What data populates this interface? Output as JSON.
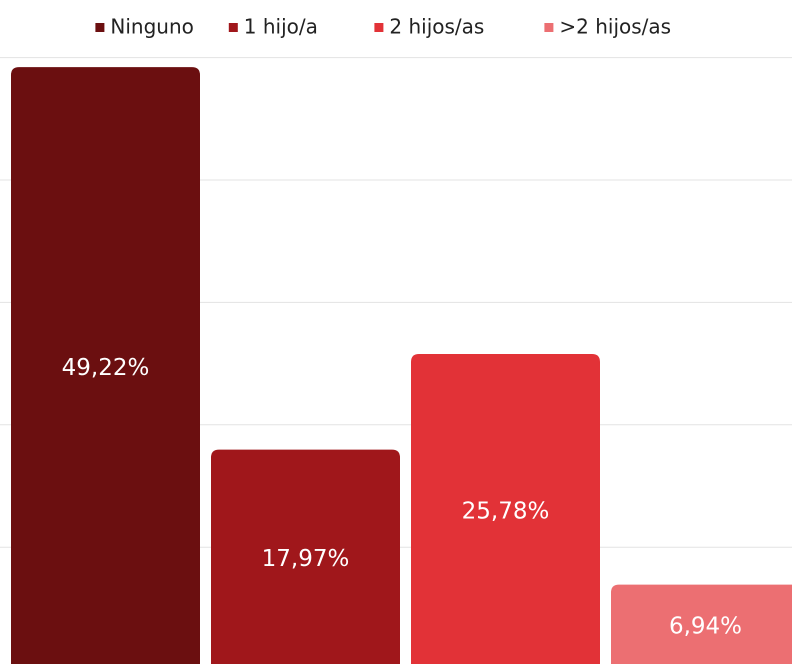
{
  "chart_data": {
    "type": "bar",
    "series": [
      {
        "name": "Ninguno",
        "color": "#6b0f10",
        "values": [
          49.22
        ],
        "value_labels": [
          "49,22%"
        ]
      },
      {
        "name": "1 hijo/a",
        "color": "#a0171b",
        "values": [
          17.97
        ],
        "value_labels": [
          "17,97%"
        ]
      },
      {
        "name": "2 hijos/as",
        "color": "#e23237",
        "values": [
          25.78
        ],
        "value_labels": [
          "25,78%"
        ]
      },
      {
        "name": ">2 hijos/as",
        "color": "#ec6f72",
        "values": [
          6.94
        ],
        "value_labels": [
          "6,94%"
        ]
      }
    ],
    "ylim": [
      0,
      50
    ],
    "yticks": [
      0,
      10,
      20,
      30,
      40,
      50
    ],
    "grid": true,
    "legend": "top"
  }
}
